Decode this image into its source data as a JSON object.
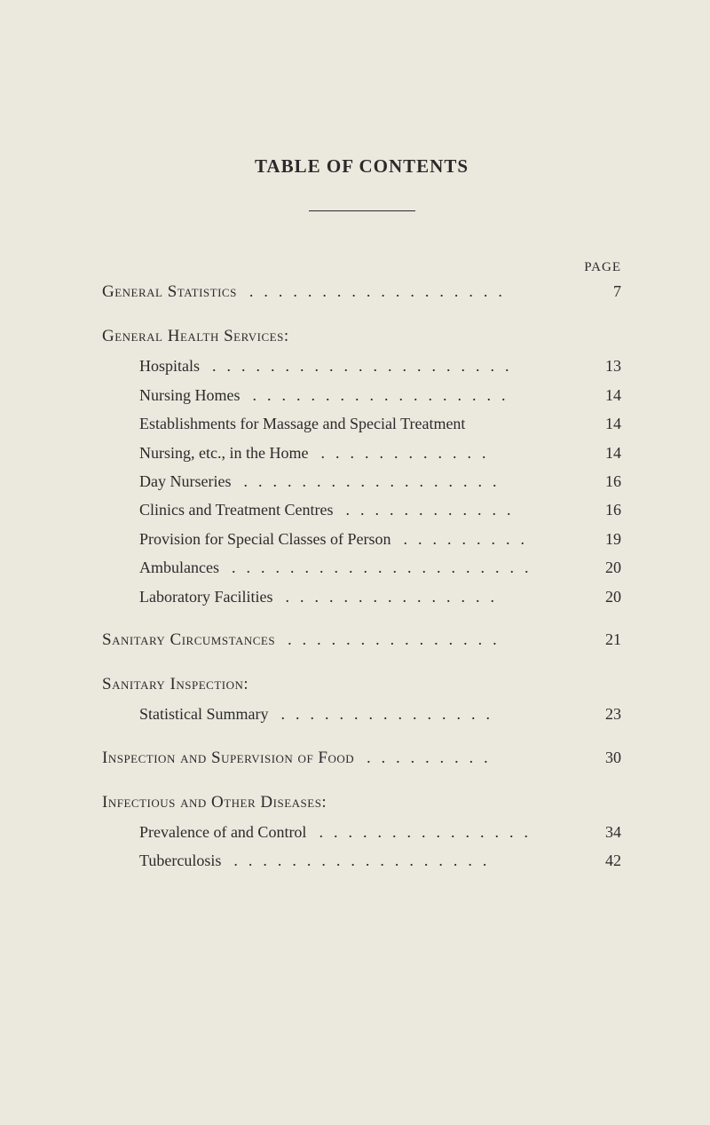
{
  "title": "TABLE OF CONTENTS",
  "page_header": "PAGE",
  "colors": {
    "background": "#ebe9de",
    "text": "#2a2a2a"
  },
  "typography": {
    "font_family": "Georgia, 'Times New Roman', serif",
    "title_fontsize": 21,
    "body_fontsize": 18,
    "header_fontsize": 15
  },
  "leader_char": "...",
  "entries": [
    {
      "type": "entry",
      "label": "General Statistics",
      "smallcaps": true,
      "indent": false,
      "leader": 6,
      "page": "7"
    },
    {
      "type": "gap"
    },
    {
      "type": "header",
      "label": "General Health Services:",
      "smallcaps": true
    },
    {
      "type": "entry",
      "label": "Hospitals",
      "smallcaps": false,
      "indent": true,
      "leader": 7,
      "page": "13"
    },
    {
      "type": "entry",
      "label": "Nursing Homes",
      "smallcaps": false,
      "indent": true,
      "leader": 6,
      "page": "14"
    },
    {
      "type": "entry",
      "label": "Establishments for Massage and Special Treatment",
      "smallcaps": false,
      "indent": true,
      "leader": 0,
      "page": "14"
    },
    {
      "type": "entry",
      "label": "Nursing, etc., in the Home",
      "smallcaps": false,
      "indent": true,
      "leader": 4,
      "page": "14"
    },
    {
      "type": "entry",
      "label": "Day Nurseries",
      "smallcaps": false,
      "indent": true,
      "leader": 6,
      "page": "16"
    },
    {
      "type": "entry",
      "label": "Clinics and Treatment Centres",
      "smallcaps": false,
      "indent": true,
      "leader": 4,
      "page": "16"
    },
    {
      "type": "entry",
      "label": "Provision for Special Classes of Person",
      "smallcaps": false,
      "indent": true,
      "leader": 3,
      "page": "19"
    },
    {
      "type": "entry",
      "label": "Ambulances",
      "smallcaps": false,
      "indent": true,
      "leader": 7,
      "page": "20"
    },
    {
      "type": "entry",
      "label": "Laboratory Facilities",
      "smallcaps": false,
      "indent": true,
      "leader": 5,
      "page": "20"
    },
    {
      "type": "gap"
    },
    {
      "type": "entry",
      "label": "Sanitary Circumstances",
      "smallcaps": true,
      "indent": false,
      "leader": 5,
      "page": "21"
    },
    {
      "type": "gap"
    },
    {
      "type": "header",
      "label": "Sanitary Inspection:",
      "smallcaps": true
    },
    {
      "type": "entry",
      "label": "Statistical Summary",
      "smallcaps": false,
      "indent": true,
      "leader": 5,
      "page": "23"
    },
    {
      "type": "gap"
    },
    {
      "type": "entry",
      "label": "Inspection and Supervision of Food",
      "smallcaps": true,
      "indent": false,
      "leader": 3,
      "page": "30"
    },
    {
      "type": "gap"
    },
    {
      "type": "header",
      "label": "Infectious and Other Diseases:",
      "smallcaps": true
    },
    {
      "type": "entry",
      "label": "Prevalence of and Control",
      "smallcaps": false,
      "indent": true,
      "leader": 5,
      "page": "34"
    },
    {
      "type": "entry",
      "label": "Tuberculosis",
      "smallcaps": false,
      "indent": true,
      "leader": 6,
      "page": "42"
    }
  ]
}
